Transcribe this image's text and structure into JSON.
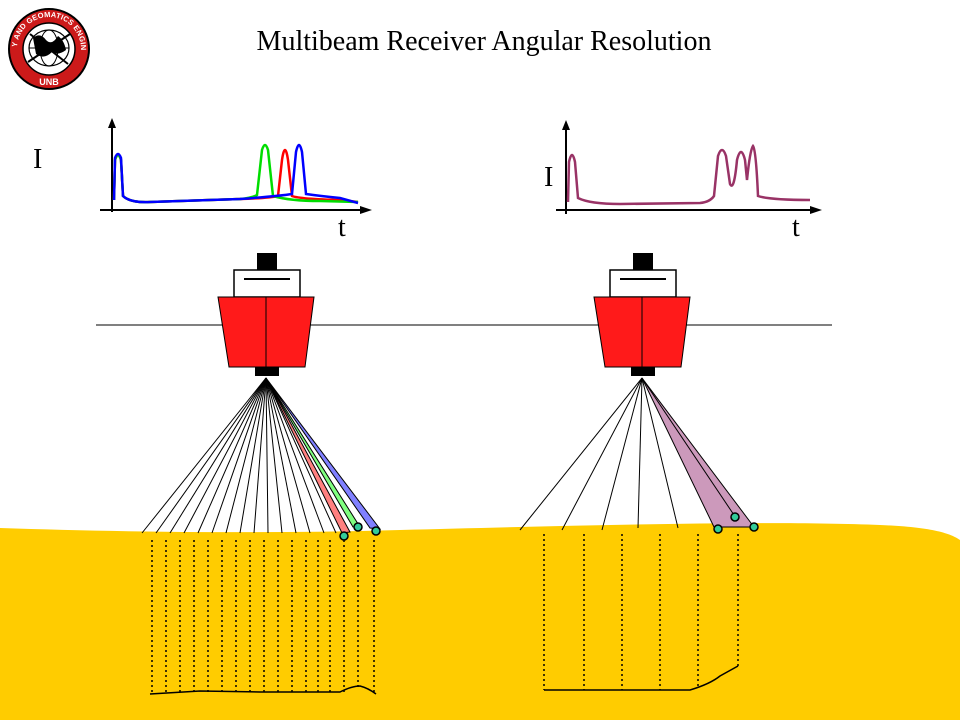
{
  "title": "Multibeam Receiver Angular Resolution",
  "logo": {
    "ring_text": "GEODESY AND GEOMATICS ENGINEERING",
    "bottom_text": "UNB"
  },
  "left_plot": {
    "y_label": "I",
    "x_label": "t"
  },
  "right_plot": {
    "y_label": "I",
    "x_label": "t"
  },
  "colors": {
    "seafloor": "#ffcc00",
    "ship_hull": "#ff1a1a",
    "beam_red": "#ff8080",
    "beam_green": "#80ff80",
    "beam_blue": "#8080ff",
    "beam_wide": "#cc99bb",
    "signal_right": "#993366",
    "dot_fill": "#33cc99"
  }
}
